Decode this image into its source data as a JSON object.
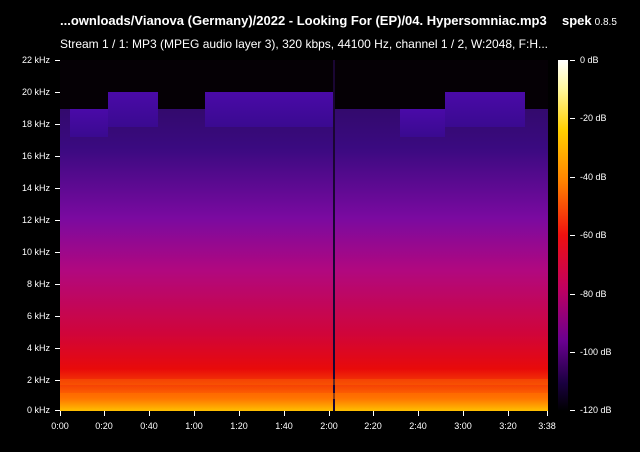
{
  "header": {
    "title": "...ownloads/Vianova (Germany)/2022 - Looking For (EP)/04. Hypersomniac.mp3",
    "app_name": "spek",
    "app_version": "0.8.5",
    "stream_info": "Stream 1 / 1: MP3 (MPEG audio layer 3), 320 kbps, 44100 Hz, channel 1 / 2, W:2048, F:H..."
  },
  "y_axis": {
    "ticks": [
      "22 kHz",
      "20 kHz",
      "18 kHz",
      "16 kHz",
      "14 kHz",
      "12 kHz",
      "10 kHz",
      "8 kHz",
      "6 kHz",
      "4 kHz",
      "2 kHz",
      "0 kHz"
    ]
  },
  "x_axis": {
    "ticks": [
      "0:00",
      "0:20",
      "0:40",
      "1:00",
      "1:20",
      "1:40",
      "2:00",
      "2:20",
      "2:40",
      "3:00",
      "3:20",
      "3:38"
    ]
  },
  "colorbar": {
    "ticks": [
      "0 dB",
      "-20 dB",
      "-40 dB",
      "-60 dB",
      "-80 dB",
      "-100 dB",
      "-120 dB"
    ]
  },
  "colors": {
    "background": "#000000",
    "text": "#ffffff"
  }
}
